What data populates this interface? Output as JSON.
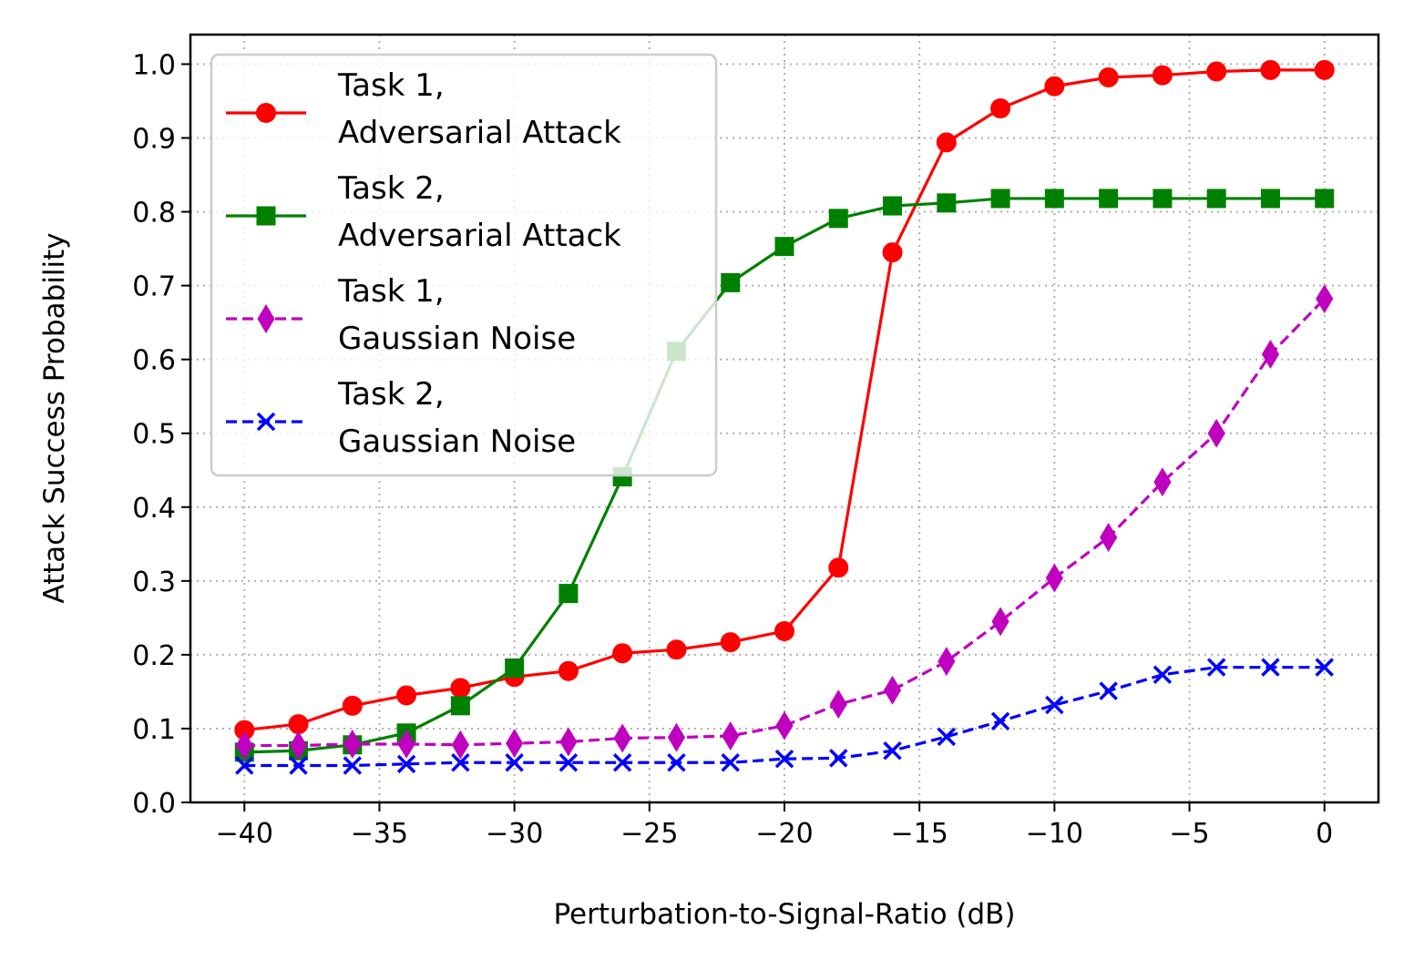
{
  "chart_data": {
    "type": "line",
    "xlabel": "Perturbation-to-Signal-Ratio (dB)",
    "ylabel": "Attack Success Probability",
    "xlim": [
      -42,
      2
    ],
    "ylim": [
      0,
      1.04
    ],
    "xticks": [
      -40,
      -35,
      -30,
      -25,
      -20,
      -15,
      -10,
      -5,
      0
    ],
    "xtick_labels": [
      "−40",
      "−35",
      "−30",
      "−25",
      "−20",
      "−15",
      "−10",
      "−5",
      "0"
    ],
    "yticks": [
      0,
      0.1,
      0.2,
      0.3,
      0.4,
      0.5,
      0.6,
      0.7,
      0.8,
      0.9,
      1.0
    ],
    "ytick_labels": [
      "0.0",
      "0.1",
      "0.2",
      "0.3",
      "0.4",
      "0.5",
      "0.6",
      "0.7",
      "0.8",
      "0.9",
      "1.0"
    ],
    "grid": true,
    "legend_position": "top-left",
    "x": [
      -40,
      -38,
      -36,
      -34,
      -32,
      -30,
      -28,
      -26,
      -24,
      -22,
      -20,
      -18,
      -16,
      -14,
      -12,
      -10,
      -8,
      -6,
      -4,
      -2,
      0
    ],
    "series": [
      {
        "name_lines": [
          "Task 1,",
          "Adversarial Attack"
        ],
        "color": "#ff0000",
        "marker": "circle",
        "dash": "solid",
        "values": [
          0.098,
          0.106,
          0.131,
          0.145,
          0.155,
          0.17,
          0.178,
          0.202,
          0.207,
          0.217,
          0.232,
          0.318,
          0.745,
          0.894,
          0.94,
          0.97,
          0.982,
          0.985,
          0.99,
          0.992,
          0.992
        ]
      },
      {
        "name_lines": [
          "Task 2,",
          "Adversarial Attack"
        ],
        "color": "#008000",
        "marker": "square",
        "dash": "solid",
        "values": [
          0.068,
          0.07,
          0.078,
          0.094,
          0.131,
          0.182,
          0.283,
          0.441,
          0.611,
          0.704,
          0.753,
          0.791,
          0.808,
          0.812,
          0.818,
          0.818,
          0.818,
          0.818,
          0.818,
          0.818,
          0.818
        ]
      },
      {
        "name_lines": [
          "Task 1,",
          "Gaussian Noise"
        ],
        "color": "#bf00bf",
        "marker": "thin_diamond",
        "dash": "dashed",
        "values": [
          0.077,
          0.077,
          0.079,
          0.079,
          0.078,
          0.08,
          0.082,
          0.087,
          0.088,
          0.09,
          0.104,
          0.133,
          0.152,
          0.191,
          0.245,
          0.304,
          0.359,
          0.434,
          0.5,
          0.607,
          0.682
        ]
      },
      {
        "name_lines": [
          "Task 2,",
          "Gaussian Noise"
        ],
        "color": "#0000ff",
        "marker": "x",
        "dash": "dashed",
        "values": [
          0.05,
          0.05,
          0.05,
          0.052,
          0.054,
          0.054,
          0.054,
          0.054,
          0.054,
          0.054,
          0.059,
          0.06,
          0.07,
          0.089,
          0.11,
          0.132,
          0.151,
          0.173,
          0.183,
          0.183,
          0.183
        ]
      }
    ]
  }
}
